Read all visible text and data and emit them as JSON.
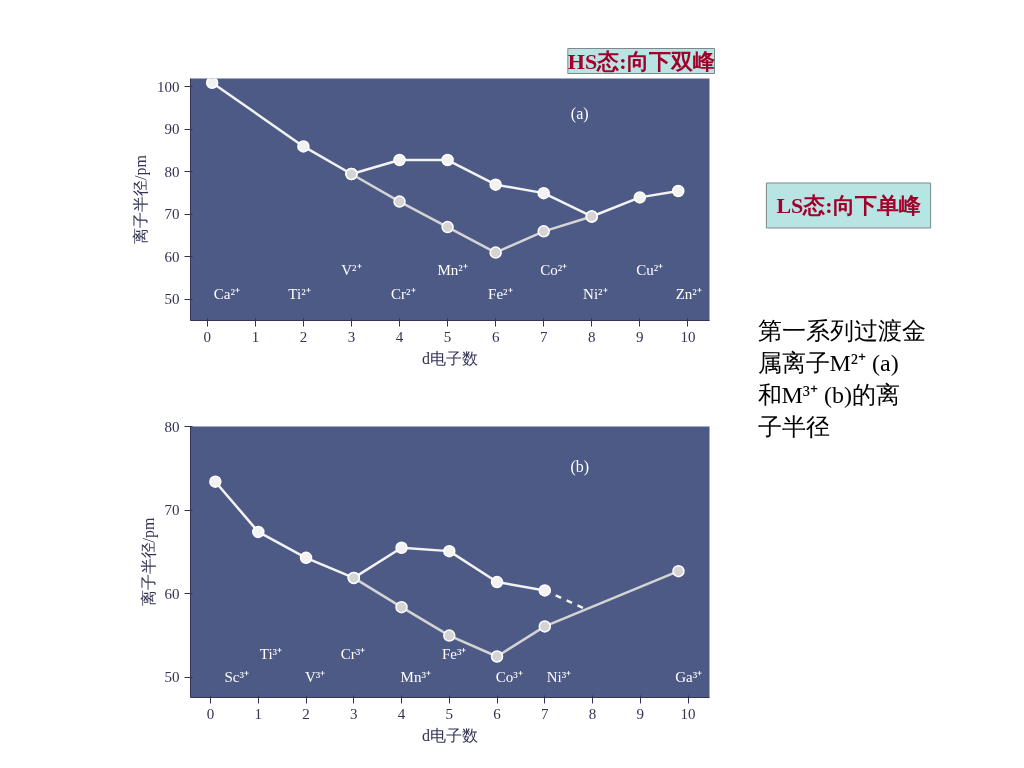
{
  "chart_data": [
    {
      "type": "line",
      "title": "(a)",
      "xlabel": "d电子数",
      "ylabel": "离子半径/pm",
      "xlim": [
        -0.35,
        10.45
      ],
      "ylim": [
        45,
        102
      ],
      "xticks": [
        0,
        1,
        2,
        3,
        4,
        5,
        6,
        7,
        8,
        9,
        10
      ],
      "yticks": [
        50,
        60,
        70,
        80,
        90,
        100
      ],
      "grid": false,
      "marker": "circle",
      "line_style": "solid",
      "series": [
        {
          "color": "#f2f2f2",
          "x": [
            0.1,
            2,
            3,
            4,
            5,
            6,
            7,
            8,
            9,
            9.8
          ],
          "values": [
            101,
            86,
            79.5,
            82.8,
            82.8,
            77,
            75,
            69.5,
            74,
            75.5
          ]
        },
        {
          "color": "#d4d4d4",
          "x": [
            3,
            4,
            5,
            6,
            7,
            8
          ],
          "values": [
            79.5,
            73,
            67,
            61,
            66,
            69.5
          ]
        }
      ],
      "annotations": [
        "Ca²⁺",
        "Ti²⁺",
        "V²⁺",
        "Cr²⁺",
        "Mn²⁺",
        "Fe²⁺",
        "Co²⁺",
        "Ni²⁺",
        "Cu²⁺",
        "Zn²⁺",
        "HS态:向下双峰",
        "LS态:向下单峰",
        "第一系列过渡金属离子M²⁺ (a)和M³⁺ (b)的离子半径"
      ]
    },
    {
      "type": "line",
      "title": "(b)",
      "xlabel": "d电子数",
      "ylabel": "离子半径/pm",
      "xlim": [
        -0.42,
        10.45
      ],
      "ylim": [
        47.6,
        80
      ],
      "xticks": [
        0,
        1,
        2,
        3,
        4,
        5,
        6,
        7,
        8,
        9,
        10
      ],
      "yticks": [
        50,
        60,
        70,
        80
      ],
      "grid": false,
      "marker": "circle",
      "line_style": "solid",
      "series": [
        {
          "color": "#f2f2f2",
          "x": [
            0.1,
            1,
            2,
            3,
            4,
            5,
            6,
            7
          ],
          "values": [
            73.4,
            67.4,
            64.3,
            61.9,
            65.5,
            65.1,
            61.4,
            60.4
          ]
        },
        {
          "color": "#f2f2f2",
          "x": [
            7,
            7.8
          ],
          "values": [
            60.4,
            58.3
          ],
          "line_style": "dashed",
          "marker": "none"
        },
        {
          "color": "#d4d4d4",
          "x": [
            3,
            4,
            5,
            6,
            7,
            9.8
          ],
          "values": [
            61.9,
            58.4,
            55.0,
            52.5,
            56.1,
            62.7
          ]
        }
      ],
      "annotations": [
        "Sc³⁺",
        "Ti³⁺",
        "V³⁺",
        "Cr³⁺",
        "Mn³⁺",
        "Fe³⁺",
        "Co³⁺",
        "Ni³⁺",
        "Ga³⁺"
      ]
    }
  ]
}
